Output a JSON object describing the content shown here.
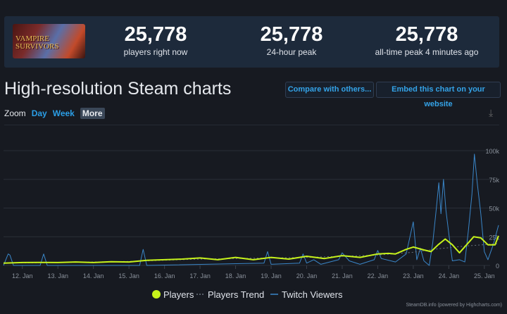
{
  "game": {
    "logo_text": "VAMPIRE SURVIVORS"
  },
  "stats": [
    {
      "value": "25,778",
      "label": "players right now"
    },
    {
      "value": "25,778",
      "label": "24-hour peak"
    },
    {
      "value": "25,778",
      "label": "all-time peak 4 minutes ago"
    }
  ],
  "title": "High-resolution Steam charts",
  "buttons": {
    "compare": "Compare with others...",
    "embed": "Embed this chart on your website"
  },
  "zoom": {
    "label": "Zoom",
    "options": [
      "Day",
      "Week",
      "More"
    ],
    "selected": "More"
  },
  "icons": {
    "download": "download-icon"
  },
  "credit": "SteamDB.info (powered by Highcharts.com)",
  "chart_data": {
    "type": "line",
    "xlabel": "",
    "ylabel": "",
    "x_unit": "day of January",
    "xlim": [
      11.47,
      25.4
    ],
    "ylim": [
      0,
      100000
    ],
    "x_ticks": [
      "12. Jan",
      "13. Jan",
      "14. Jan",
      "15. Jan",
      "16. Jan",
      "17. Jan",
      "18. Jan",
      "19. Jan",
      "20. Jan",
      "21. Jan",
      "22. Jan",
      "23. Jan",
      "24. Jan",
      "25. Jan"
    ],
    "y_ticks": [
      "0",
      "25k",
      "50k",
      "75k",
      "100k"
    ],
    "grid": true,
    "legend": "bottom-center",
    "colors": {
      "Players": "#c6f21b",
      "Players Trend": "#6b7580",
      "Twitch Viewers": "#3a86c8"
    },
    "series": [
      {
        "name": "Players",
        "x": [
          11.47,
          12,
          12.5,
          13,
          13.5,
          14,
          14.5,
          15,
          15.5,
          16,
          16.5,
          17,
          17.5,
          18,
          18.5,
          19,
          19.5,
          20,
          20.5,
          21,
          21.5,
          22,
          22.3,
          22.5,
          22.8,
          23,
          23.3,
          23.5,
          23.7,
          23.9,
          24.1,
          24.3,
          24.5,
          24.7,
          24.9,
          25.1,
          25.3,
          25.4
        ],
        "y": [
          2000,
          2500,
          2600,
          2500,
          3000,
          2500,
          3200,
          3000,
          4500,
          5000,
          5500,
          6500,
          5000,
          7000,
          5000,
          7000,
          5500,
          8000,
          6000,
          8500,
          7000,
          10000,
          10500,
          10000,
          14000,
          16000,
          13500,
          12000,
          18000,
          23000,
          18000,
          11000,
          18000,
          25000,
          24000,
          18000,
          18000,
          25778
        ]
      },
      {
        "name": "Players Trend",
        "x": [
          11.47,
          13,
          15,
          17,
          19,
          20,
          21,
          22,
          23,
          23.7,
          24.5,
          25.4
        ],
        "y": [
          2000,
          2500,
          3500,
          5500,
          6500,
          7000,
          8000,
          9000,
          11500,
          14500,
          17000,
          19000
        ]
      },
      {
        "name": "Twitch Viewers",
        "x": [
          11.47,
          11.6,
          11.65,
          11.75,
          12.5,
          12.6,
          12.7,
          15.3,
          15.4,
          15.5,
          18.8,
          18.9,
          19.0,
          19.8,
          19.9,
          20.0,
          20.2,
          20.4,
          20.9,
          21.0,
          21.2,
          21.5,
          21.9,
          22.0,
          22.1,
          22.5,
          22.8,
          23.0,
          23.1,
          23.2,
          23.3,
          23.45,
          23.55,
          23.65,
          23.72,
          23.78,
          23.85,
          23.92,
          24.0,
          24.1,
          24.3,
          24.45,
          24.55,
          24.65,
          24.72,
          24.8,
          24.9,
          25.0,
          25.1,
          25.25,
          25.4
        ],
        "y": [
          0,
          10000,
          9000,
          0,
          0,
          10000,
          0,
          0,
          14000,
          0,
          2000,
          12000,
          1000,
          2000,
          10000,
          2000,
          5000,
          1000,
          5000,
          11000,
          4000,
          1000,
          5000,
          13000,
          6000,
          3000,
          10000,
          38000,
          5000,
          15000,
          4000,
          0,
          20000,
          50000,
          72000,
          45000,
          75000,
          48000,
          28000,
          4000,
          5000,
          3000,
          30000,
          62000,
          97000,
          72000,
          45000,
          12000,
          5000,
          18000,
          35000
        ]
      }
    ]
  }
}
